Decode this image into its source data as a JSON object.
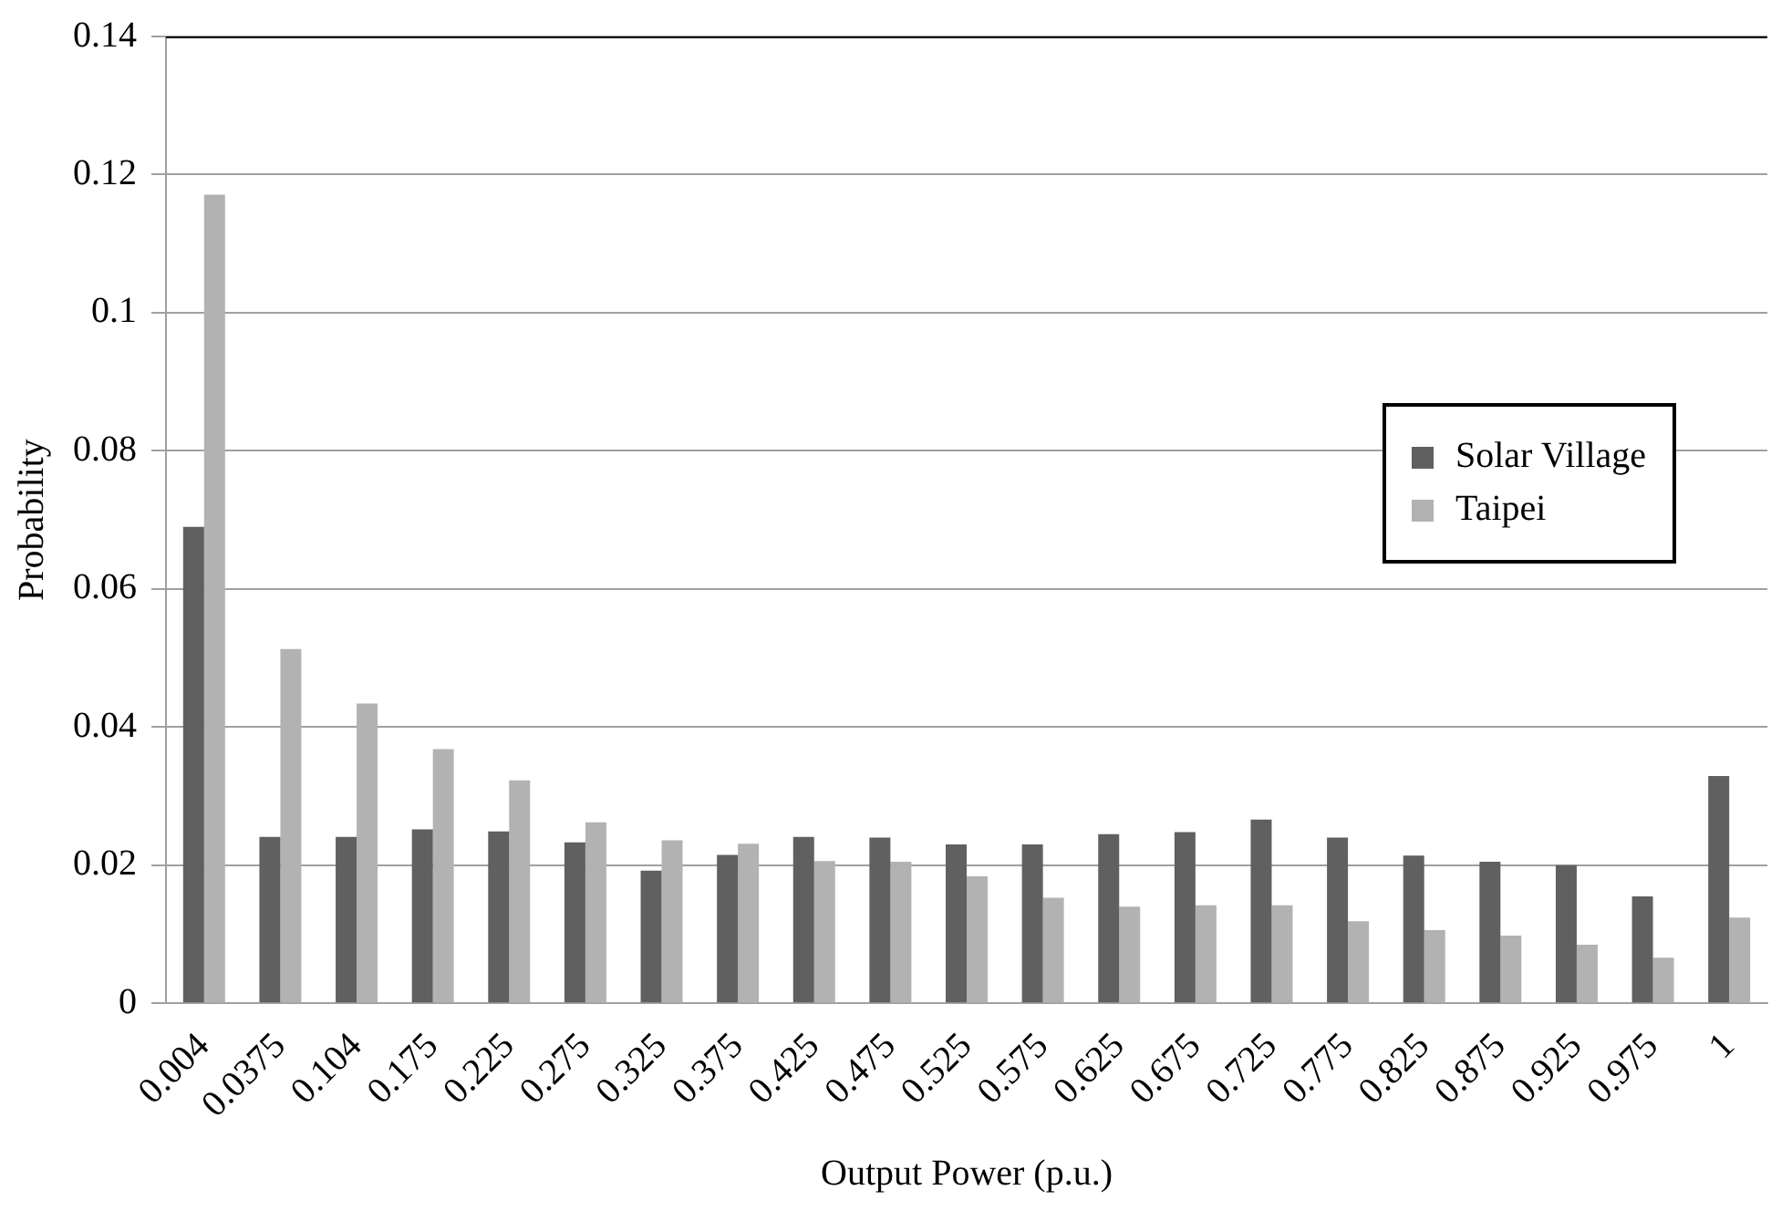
{
  "chart_data": {
    "type": "bar",
    "xlabel": "Output Power (p.u.)",
    "ylabel": "Probability",
    "categories": [
      "0.004",
      "0.0375",
      "0.104",
      "0.175",
      "0.225",
      "0.275",
      "0.325",
      "0.375",
      "0.425",
      "0.475",
      "0.525",
      "0.575",
      "0.625",
      "0.675",
      "0.725",
      "0.775",
      "0.825",
      "0.875",
      "0.925",
      "0.975",
      "1"
    ],
    "series": [
      {
        "name": "Solar Village",
        "color": "#606060",
        "values": [
          0.069,
          0.0241,
          0.0241,
          0.0252,
          0.0249,
          0.0233,
          0.0192,
          0.0215,
          0.0241,
          0.024,
          0.023,
          0.023,
          0.0245,
          0.0248,
          0.0266,
          0.024,
          0.0214,
          0.0205,
          0.02,
          0.0155,
          0.0329
        ]
      },
      {
        "name": "Taipei",
        "color": "#b2b2b2",
        "values": [
          0.1171,
          0.0513,
          0.0434,
          0.0368,
          0.0323,
          0.0262,
          0.0236,
          0.0231,
          0.0206,
          0.0205,
          0.0184,
          0.0153,
          0.014,
          0.0142,
          0.0142,
          0.0119,
          0.0106,
          0.0098,
          0.0085,
          0.0066,
          0.0124
        ]
      }
    ],
    "ylim": [
      0,
      0.14
    ],
    "yticks": [
      0,
      0.02,
      0.04,
      0.06,
      0.08,
      0.1,
      0.12,
      0.14
    ],
    "grid": "y",
    "legend": "right"
  }
}
